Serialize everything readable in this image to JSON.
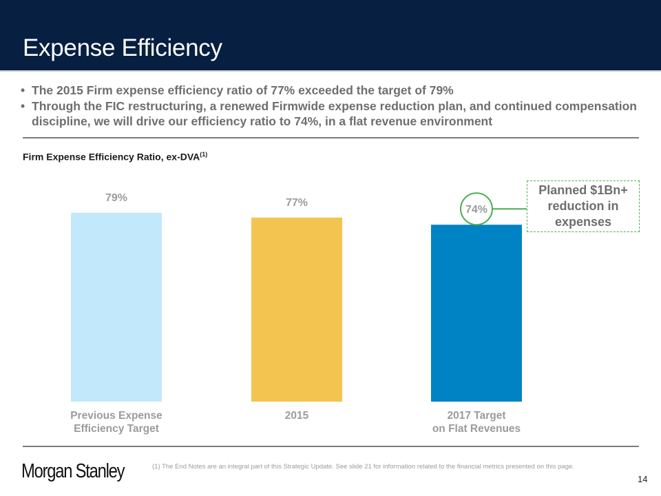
{
  "header": {
    "title": "Expense Efficiency"
  },
  "bullets": [
    "The 2015 Firm expense efficiency ratio of 77% exceeded the target of 79%",
    "Through the FIC restructuring, a renewed Firmwide expense reduction plan, and continued compensation discipline, we will drive our efficiency ratio to 74%, in a flat revenue environment"
  ],
  "callout": {
    "lines": [
      "Planned $1Bn+",
      "reduction in",
      "expenses"
    ]
  },
  "footer": {
    "logo": "Morgan Stanley",
    "footnote": "(1)   The End Notes are an integral part of this Strategic Update. See slide 21 for information related to the financial metrics presented on this page.",
    "page_number": "14"
  },
  "chart_data": {
    "type": "bar",
    "title": "Firm Expense Efficiency Ratio, ex-DVA",
    "title_superscript": "(1)",
    "categories": [
      [
        "Previous Expense",
        "Efficiency Target"
      ],
      [
        "2015"
      ],
      [
        "2017 Target",
        "on Flat Revenues"
      ]
    ],
    "values": [
      79,
      77,
      74
    ],
    "data_labels": [
      "79%",
      "77%",
      "74%"
    ],
    "colors": [
      "#c2e8fb",
      "#f4c451",
      "#0083c4"
    ],
    "highlight": {
      "index": 2,
      "color": "#4caf50"
    },
    "xlabel": "",
    "ylabel": "",
    "ylim": [
      0,
      100
    ],
    "grid": false,
    "legend": "none"
  }
}
